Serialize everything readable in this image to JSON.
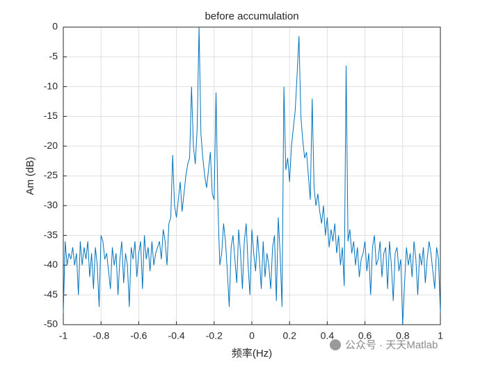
{
  "chart_data": {
    "type": "line",
    "title": "before accumulation",
    "xlabel": "频率(Hz)",
    "ylabel": "Am (dB)",
    "watermark": "公众号 · 天天Matlab",
    "x": [
      -1,
      -0.99,
      -0.98,
      -0.97,
      -0.96,
      -0.95,
      -0.94,
      -0.93,
      -0.92,
      -0.91,
      -0.9,
      -0.89,
      -0.88,
      -0.87,
      -0.86,
      -0.85,
      -0.84,
      -0.83,
      -0.82,
      -0.81,
      -0.8,
      -0.79,
      -0.78,
      -0.77,
      -0.76,
      -0.75,
      -0.74,
      -0.73,
      -0.72,
      -0.71,
      -0.7,
      -0.69,
      -0.68,
      -0.67,
      -0.66,
      -0.65,
      -0.64,
      -0.63,
      -0.62,
      -0.61,
      -0.6,
      -0.59,
      -0.58,
      -0.57,
      -0.56,
      -0.55,
      -0.54,
      -0.53,
      -0.52,
      -0.51,
      -0.5,
      -0.49,
      -0.48,
      -0.47,
      -0.46,
      -0.45,
      -0.44,
      -0.43,
      -0.42,
      -0.41,
      -0.4,
      -0.39,
      -0.38,
      -0.37,
      -0.36,
      -0.35,
      -0.34,
      -0.33,
      -0.32,
      -0.31,
      -0.3,
      -0.29,
      -0.28,
      -0.27,
      -0.26,
      -0.25,
      -0.24,
      -0.23,
      -0.22,
      -0.21,
      -0.2,
      -0.19,
      -0.18,
      -0.17,
      -0.16,
      -0.15,
      -0.14,
      -0.13,
      -0.12,
      -0.11,
      -0.1,
      -0.09,
      -0.08,
      -0.07,
      -0.06,
      -0.05,
      -0.04,
      -0.03,
      -0.02,
      -0.01,
      0,
      0.01,
      0.02,
      0.03,
      0.04,
      0.05,
      0.06,
      0.07,
      0.08,
      0.09,
      0.1,
      0.11,
      0.12,
      0.13,
      0.14,
      0.15,
      0.16,
      0.17,
      0.18,
      0.19,
      0.2,
      0.21,
      0.22,
      0.23,
      0.24,
      0.25,
      0.26,
      0.27,
      0.28,
      0.29,
      0.3,
      0.31,
      0.32,
      0.33,
      0.34,
      0.35,
      0.36,
      0.37,
      0.38,
      0.39,
      0.4,
      0.41,
      0.42,
      0.43,
      0.44,
      0.45,
      0.46,
      0.47,
      0.48,
      0.49,
      0.5,
      0.51,
      0.52,
      0.53,
      0.54,
      0.55,
      0.56,
      0.57,
      0.58,
      0.59,
      0.6,
      0.61,
      0.62,
      0.63,
      0.64,
      0.65,
      0.66,
      0.67,
      0.68,
      0.69,
      0.7,
      0.71,
      0.72,
      0.73,
      0.74,
      0.75,
      0.76,
      0.77,
      0.78,
      0.79,
      0.8,
      0.81,
      0.82,
      0.83,
      0.84,
      0.85,
      0.86,
      0.87,
      0.88,
      0.89,
      0.9,
      0.91,
      0.92,
      0.93,
      0.94,
      0.95,
      0.96,
      0.97,
      0.98,
      0.99,
      1
    ],
    "series": [
      {
        "name": "Am",
        "color": "#0072bd",
        "values": [
          -48,
          -36,
          -40,
          -38,
          -39,
          -37,
          -40,
          -38,
          -45,
          -36,
          -40,
          -37,
          -39,
          -36,
          -42,
          -38,
          -44,
          -37,
          -40,
          -47,
          -35,
          -36,
          -39,
          -38,
          -41,
          -44,
          -37,
          -40,
          -38,
          -45,
          -39,
          -36,
          -43,
          -38,
          -40,
          -47,
          -37,
          -39,
          -36,
          -42,
          -38,
          -36,
          -44,
          -35,
          -39,
          -37,
          -41,
          -36,
          -40,
          -38,
          -37,
          -36,
          -39,
          -34,
          -36,
          -40,
          -33,
          -32,
          -21.5,
          -30,
          -32,
          -29,
          -26,
          -31,
          -28,
          -25,
          -23,
          -22,
          -10,
          -20,
          -23,
          -17,
          0,
          -18,
          -22,
          -25,
          -27,
          -24,
          -21,
          -28,
          -29,
          -11,
          -30,
          -40,
          -38,
          -33,
          -36,
          -41,
          -47,
          -37,
          -35,
          -39,
          -43,
          -34,
          -38,
          -44,
          -36,
          -33,
          -40,
          -45,
          -34,
          -38,
          -41,
          -35,
          -39,
          -44,
          -36,
          -42,
          -38,
          -40,
          -44,
          -37,
          -35,
          -46,
          -32,
          -38,
          -47,
          -10,
          -24,
          -22,
          -26,
          -20,
          -17,
          -14,
          -8,
          -1.5,
          -15,
          -19,
          -22,
          -21,
          -25,
          -29,
          -12,
          -27,
          -30,
          -28,
          -31,
          -33,
          -30,
          -35,
          -32,
          -37,
          -34,
          -36,
          -33,
          -38,
          -35,
          -40,
          -37,
          -43.5,
          -6.5,
          -36,
          -34,
          -38,
          -36,
          -40,
          -37,
          -42,
          -39,
          -38,
          -36,
          -41,
          -38,
          -45,
          -37,
          -35,
          -40,
          -39,
          -36,
          -42,
          -38,
          -37,
          -44,
          -36,
          -40,
          -46,
          -38,
          -37,
          -41,
          -39,
          -50,
          -43,
          -37,
          -40,
          -38,
          -42,
          -36,
          -39,
          -45,
          -38,
          -40,
          -37,
          -43,
          -39,
          -36,
          -38,
          -41,
          -44,
          -37,
          -39,
          -48
        ]
      }
    ],
    "xlim": [
      -1,
      1
    ],
    "xticks": [
      -1,
      -0.8,
      -0.6,
      -0.4,
      -0.2,
      0,
      0.2,
      0.4,
      0.6,
      0.8,
      1
    ],
    "ylim": [
      -50,
      0
    ],
    "yticks": [
      0,
      -5,
      -10,
      -15,
      -20,
      -25,
      -30,
      -35,
      -40,
      -45,
      -50
    ],
    "grid": true
  }
}
